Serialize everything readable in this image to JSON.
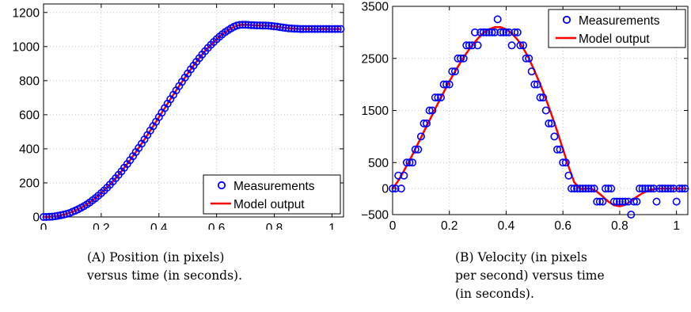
{
  "chart_data": [
    {
      "id": "a",
      "type": "scatter",
      "xlim": [
        0,
        1.04
      ],
      "ylim": [
        0,
        1250
      ],
      "x_ticks": [
        "0",
        "0.2",
        "0.4",
        "0.6",
        "0.8",
        "1"
      ],
      "x_tick_values": [
        0,
        0.2,
        0.4,
        0.6,
        0.8,
        1.0
      ],
      "y_ticks": [
        "0",
        "200",
        "400",
        "600",
        "800",
        "1000",
        "1200"
      ],
      "y_tick_values": [
        0,
        200,
        400,
        600,
        800,
        1000,
        1200
      ],
      "grid": true,
      "legend": {
        "placement": "bottom-right",
        "entries": [
          "Measurements",
          "Model output"
        ]
      },
      "series": [
        {
          "name": "Measurements",
          "style": "markers",
          "x": [
            0,
            0.01,
            0.02,
            0.03,
            0.04,
            0.05,
            0.06,
            0.07,
            0.08,
            0.09,
            0.1,
            0.11,
            0.12,
            0.13,
            0.14,
            0.15,
            0.16,
            0.17,
            0.18,
            0.19,
            0.2,
            0.21,
            0.22,
            0.23,
            0.24,
            0.25,
            0.26,
            0.27,
            0.28,
            0.29,
            0.3,
            0.31,
            0.32,
            0.33,
            0.34,
            0.35,
            0.36,
            0.37,
            0.38,
            0.39,
            0.4,
            0.41,
            0.42,
            0.43,
            0.44,
            0.45,
            0.46,
            0.47,
            0.48,
            0.49,
            0.5,
            0.51,
            0.52,
            0.53,
            0.54,
            0.55,
            0.56,
            0.57,
            0.58,
            0.59,
            0.6,
            0.61,
            0.62,
            0.63,
            0.64,
            0.65,
            0.66,
            0.67,
            0.68,
            0.69,
            0.7,
            0.71,
            0.72,
            0.73,
            0.74,
            0.75,
            0.76,
            0.77,
            0.78,
            0.79,
            0.8,
            0.81,
            0.82,
            0.83,
            0.84,
            0.85,
            0.86,
            0.87,
            0.88,
            0.89,
            0.9,
            0.91,
            0.92,
            0.93,
            0.94,
            0.95,
            0.96,
            0.97,
            0.98,
            0.99,
            1.0,
            1.01,
            1.02,
            1.03
          ],
          "y": [
            0,
            0,
            1,
            2,
            4,
            7,
            10,
            14,
            18,
            23,
            30,
            37,
            45,
            54,
            63,
            74,
            85,
            98,
            111,
            125,
            140,
            155,
            172,
            189,
            208,
            227,
            247,
            267,
            289,
            311,
            333,
            357,
            381,
            405,
            430,
            455,
            481,
            507,
            533,
            559,
            586,
            612,
            639,
            665,
            691,
            717,
            743,
            768,
            793,
            818,
            842,
            866,
            888,
            911,
            932,
            953,
            973,
            992,
            1010,
            1027,
            1043,
            1058,
            1072,
            1085,
            1096,
            1107,
            1116,
            1123,
            1127,
            1128,
            1128,
            1127,
            1126,
            1125,
            1124,
            1124,
            1123,
            1123,
            1122,
            1121,
            1119,
            1117,
            1114,
            1112,
            1109,
            1107,
            1106,
            1105,
            1104,
            1103,
            1103,
            1103,
            1103,
            1103,
            1103,
            1103,
            1103,
            1103,
            1103,
            1103,
            1103,
            1103,
            1103,
            1103
          ]
        },
        {
          "name": "Model output",
          "style": "line",
          "x": [
            0,
            0.02,
            0.04,
            0.06,
            0.08,
            0.1,
            0.12,
            0.14,
            0.16,
            0.18,
            0.2,
            0.22,
            0.24,
            0.26,
            0.28,
            0.3,
            0.32,
            0.34,
            0.36,
            0.38,
            0.4,
            0.42,
            0.44,
            0.46,
            0.48,
            0.5,
            0.52,
            0.54,
            0.56,
            0.58,
            0.6,
            0.62,
            0.64,
            0.66,
            0.68,
            0.7,
            0.72,
            0.74,
            0.76,
            0.78,
            0.8,
            0.82,
            0.84,
            0.86,
            0.88,
            0.9,
            0.92,
            0.94,
            0.96,
            0.98,
            1.0,
            1.02,
            1.03
          ],
          "y": [
            0,
            1,
            4,
            10,
            18,
            30,
            45,
            63,
            85,
            111,
            140,
            172,
            208,
            247,
            289,
            333,
            381,
            430,
            481,
            533,
            586,
            639,
            691,
            743,
            793,
            842,
            888,
            932,
            973,
            1010,
            1043,
            1072,
            1096,
            1116,
            1127,
            1128,
            1126,
            1124,
            1123,
            1122,
            1119,
            1114,
            1109,
            1106,
            1104,
            1103,
            1103,
            1103,
            1103,
            1103,
            1103,
            1103,
            1103
          ]
        }
      ],
      "caption": {
        "label": "(A)",
        "text": [
          "Position (in pixels)",
          "versus time (in seconds)."
        ]
      }
    },
    {
      "id": "b",
      "type": "scatter",
      "xlim": [
        0,
        1.04
      ],
      "ylim": [
        -500,
        3500
      ],
      "x_ticks": [
        "0",
        "0.2",
        "0.4",
        "0.6",
        "0.8",
        "1"
      ],
      "x_tick_values": [
        0,
        0.2,
        0.4,
        0.6,
        0.8,
        1.0
      ],
      "y_ticks": [
        "3500",
        "2500",
        "1500",
        "500",
        "0",
        "−500"
      ],
      "y_tick_values": [
        3500,
        2500,
        1500,
        500,
        0,
        -500
      ],
      "grid": true,
      "legend": {
        "placement": "top-right",
        "entries": [
          "Measurements",
          "Model output"
        ]
      },
      "series": [
        {
          "name": "Measurements",
          "style": "markers",
          "x": [
            0,
            0.01,
            0.02,
            0.03,
            0.04,
            0.05,
            0.06,
            0.07,
            0.08,
            0.09,
            0.1,
            0.11,
            0.12,
            0.13,
            0.14,
            0.15,
            0.16,
            0.17,
            0.18,
            0.19,
            0.2,
            0.21,
            0.22,
            0.23,
            0.24,
            0.25,
            0.26,
            0.27,
            0.28,
            0.29,
            0.3,
            0.31,
            0.32,
            0.33,
            0.34,
            0.35,
            0.36,
            0.37,
            0.38,
            0.39,
            0.4,
            0.41,
            0.42,
            0.43,
            0.44,
            0.45,
            0.46,
            0.47,
            0.48,
            0.49,
            0.5,
            0.51,
            0.52,
            0.53,
            0.54,
            0.55,
            0.56,
            0.57,
            0.58,
            0.59,
            0.6,
            0.61,
            0.62,
            0.63,
            0.64,
            0.65,
            0.66,
            0.67,
            0.68,
            0.69,
            0.7,
            0.71,
            0.72,
            0.73,
            0.74,
            0.75,
            0.76,
            0.77,
            0.78,
            0.79,
            0.8,
            0.81,
            0.82,
            0.83,
            0.84,
            0.85,
            0.86,
            0.87,
            0.88,
            0.89,
            0.9,
            0.91,
            0.92,
            0.93,
            0.94,
            0.95,
            0.96,
            0.97,
            0.98,
            0.99,
            1.0,
            1.01,
            1.02,
            1.03
          ],
          "y": [
            0,
            0,
            250,
            0,
            250,
            500,
            500,
            500,
            750,
            750,
            1000,
            1250,
            1250,
            1500,
            1500,
            1750,
            1750,
            1750,
            2000,
            2000,
            2000,
            2250,
            2250,
            2500,
            2500,
            2500,
            2750,
            2750,
            2750,
            3000,
            2750,
            3000,
            3000,
            3000,
            3000,
            3000,
            3000,
            3250,
            3000,
            3000,
            3000,
            3000,
            2750,
            3000,
            3000,
            2750,
            2750,
            2500,
            2500,
            2250,
            2000,
            2000,
            1750,
            1750,
            1500,
            1250,
            1250,
            1000,
            750,
            750,
            500,
            500,
            250,
            0,
            0,
            0,
            0,
            0,
            0,
            0,
            0,
            0,
            -250,
            -250,
            -250,
            0,
            0,
            0,
            -250,
            -250,
            -250,
            -250,
            -250,
            -250,
            -500,
            -250,
            -250,
            0,
            0,
            0,
            0,
            0,
            0,
            -250,
            0,
            0,
            0,
            0,
            0,
            0,
            -250,
            0,
            0,
            0
          ]
        },
        {
          "name": "Model output",
          "style": "line",
          "x": [
            0,
            0.02,
            0.04,
            0.06,
            0.08,
            0.1,
            0.12,
            0.14,
            0.16,
            0.18,
            0.2,
            0.22,
            0.24,
            0.26,
            0.28,
            0.3,
            0.32,
            0.34,
            0.36,
            0.38,
            0.4,
            0.42,
            0.44,
            0.46,
            0.48,
            0.5,
            0.52,
            0.54,
            0.56,
            0.58,
            0.6,
            0.62,
            0.64,
            0.66,
            0.67,
            0.68,
            0.7,
            0.72,
            0.74,
            0.76,
            0.78,
            0.8,
            0.82,
            0.84,
            0.86,
            0.88,
            0.9,
            0.92,
            0.94,
            0.96,
            0.98,
            1.0,
            1.02,
            1.03
          ],
          "y": [
            0,
            150,
            340,
            540,
            760,
            980,
            1200,
            1420,
            1640,
            1850,
            2060,
            2250,
            2430,
            2600,
            2750,
            2880,
            2990,
            3060,
            3100,
            3100,
            3060,
            2980,
            2860,
            2700,
            2500,
            2260,
            2000,
            1720,
            1420,
            1100,
            760,
            420,
            120,
            0,
            -10,
            0,
            0,
            -60,
            -150,
            -250,
            -320,
            -340,
            -310,
            -240,
            -160,
            -90,
            -40,
            -10,
            0,
            0,
            0,
            0,
            0,
            0
          ]
        }
      ],
      "caption": {
        "label": "(B)",
        "text": [
          "Velocity (in pixels",
          "per second) versus time",
          "(in seconds)."
        ]
      }
    }
  ],
  "colors": {
    "marker": "#0000ff",
    "line": "#ff0000",
    "grid": "#bfbfbf",
    "axis": "#000000"
  }
}
